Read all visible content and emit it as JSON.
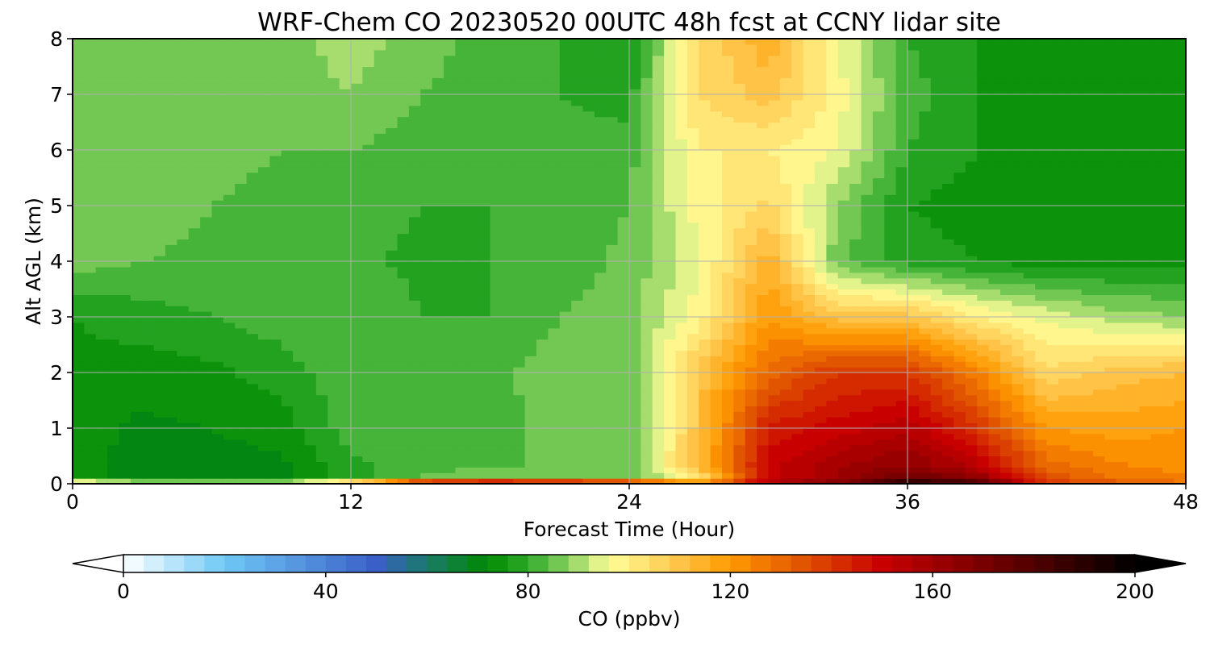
{
  "chart_data": {
    "type": "heatmap",
    "title": "WRF-Chem CO  20230520 00UTC 48h fcst at CCNY lidar site",
    "xlabel": "Forecast Time (Hour)",
    "ylabel": "Alt AGL (km)",
    "xlim": [
      0,
      48
    ],
    "ylim": [
      0,
      8
    ],
    "xticks": [
      "0",
      "12",
      "24",
      "36",
      "48"
    ],
    "yticks": [
      "0",
      "1",
      "2",
      "3",
      "4",
      "5",
      "6",
      "7",
      "8"
    ],
    "grid": true,
    "colorbar": {
      "label": "CO  (ppbv)",
      "range": [
        0,
        200
      ],
      "ticks": [
        "0",
        "40",
        "80",
        "120",
        "160",
        "200"
      ],
      "extend": "both",
      "colors": [
        {
          "value": 0,
          "color": "#ffffff"
        },
        {
          "value": 20,
          "color": "#6ec8f5"
        },
        {
          "value": 50,
          "color": "#3a60c8"
        },
        {
          "value": 60,
          "color": "#1a7a6a"
        },
        {
          "value": 72,
          "color": "#008a00"
        },
        {
          "value": 80,
          "color": "#2eaa2a"
        },
        {
          "value": 88,
          "color": "#8ad060"
        },
        {
          "value": 96,
          "color": "#ffff99"
        },
        {
          "value": 108,
          "color": "#ffcc55"
        },
        {
          "value": 120,
          "color": "#ff9a00"
        },
        {
          "value": 135,
          "color": "#e05000"
        },
        {
          "value": 150,
          "color": "#c80000"
        },
        {
          "value": 170,
          "color": "#780000"
        },
        {
          "value": 200,
          "color": "#000000"
        }
      ]
    },
    "grid_hours": [
      0,
      3,
      6,
      9,
      12,
      15,
      18,
      21,
      24,
      27,
      30,
      33,
      36,
      39,
      42,
      45,
      48
    ],
    "grid_alt_km": [
      0,
      0.1,
      0.3,
      1,
      2,
      3,
      4,
      5,
      6,
      7,
      8
    ],
    "values_ppbv": [
      [
        115,
        102,
        102,
        102,
        125,
        185,
        195,
        190,
        180,
        130,
        160,
        170,
        200,
        190,
        140,
        135,
        130
      ],
      [
        74,
        70,
        70,
        70,
        78,
        85,
        88,
        85,
        84,
        100,
        150,
        160,
        175,
        165,
        135,
        128,
        125
      ],
      [
        74,
        70,
        70,
        71,
        79,
        82,
        84,
        84,
        84,
        112,
        150,
        160,
        165,
        155,
        130,
        125,
        122
      ],
      [
        74,
        71,
        72,
        74,
        82,
        80,
        82,
        86,
        85,
        110,
        145,
        150,
        155,
        140,
        120,
        118,
        120
      ],
      [
        75,
        74,
        75,
        78,
        83,
        80,
        83,
        86,
        86,
        110,
        130,
        140,
        140,
        125,
        105,
        110,
        112
      ],
      [
        76,
        78,
        80,
        82,
        84,
        80,
        80,
        84,
        86,
        98,
        120,
        110,
        110,
        100,
        95,
        90,
        88
      ],
      [
        86,
        84,
        83,
        82,
        81,
        79,
        80,
        82,
        85,
        95,
        115,
        85,
        78,
        76,
        74,
        74,
        75
      ],
      [
        87,
        86,
        84,
        82,
        82,
        80,
        80,
        82,
        84,
        98,
        105,
        88,
        76,
        74,
        73,
        74,
        74
      ],
      [
        85,
        87,
        86,
        84,
        84,
        82,
        80,
        82,
        82,
        100,
        100,
        96,
        80,
        76,
        74,
        74,
        75
      ],
      [
        88,
        88,
        87,
        86,
        88,
        84,
        82,
        80,
        78,
        104,
        110,
        98,
        82,
        76,
        75,
        74,
        74
      ],
      [
        86,
        88,
        88,
        86,
        90,
        86,
        82,
        80,
        76,
        104,
        115,
        96,
        80,
        76,
        74,
        74,
        74
      ]
    ]
  }
}
